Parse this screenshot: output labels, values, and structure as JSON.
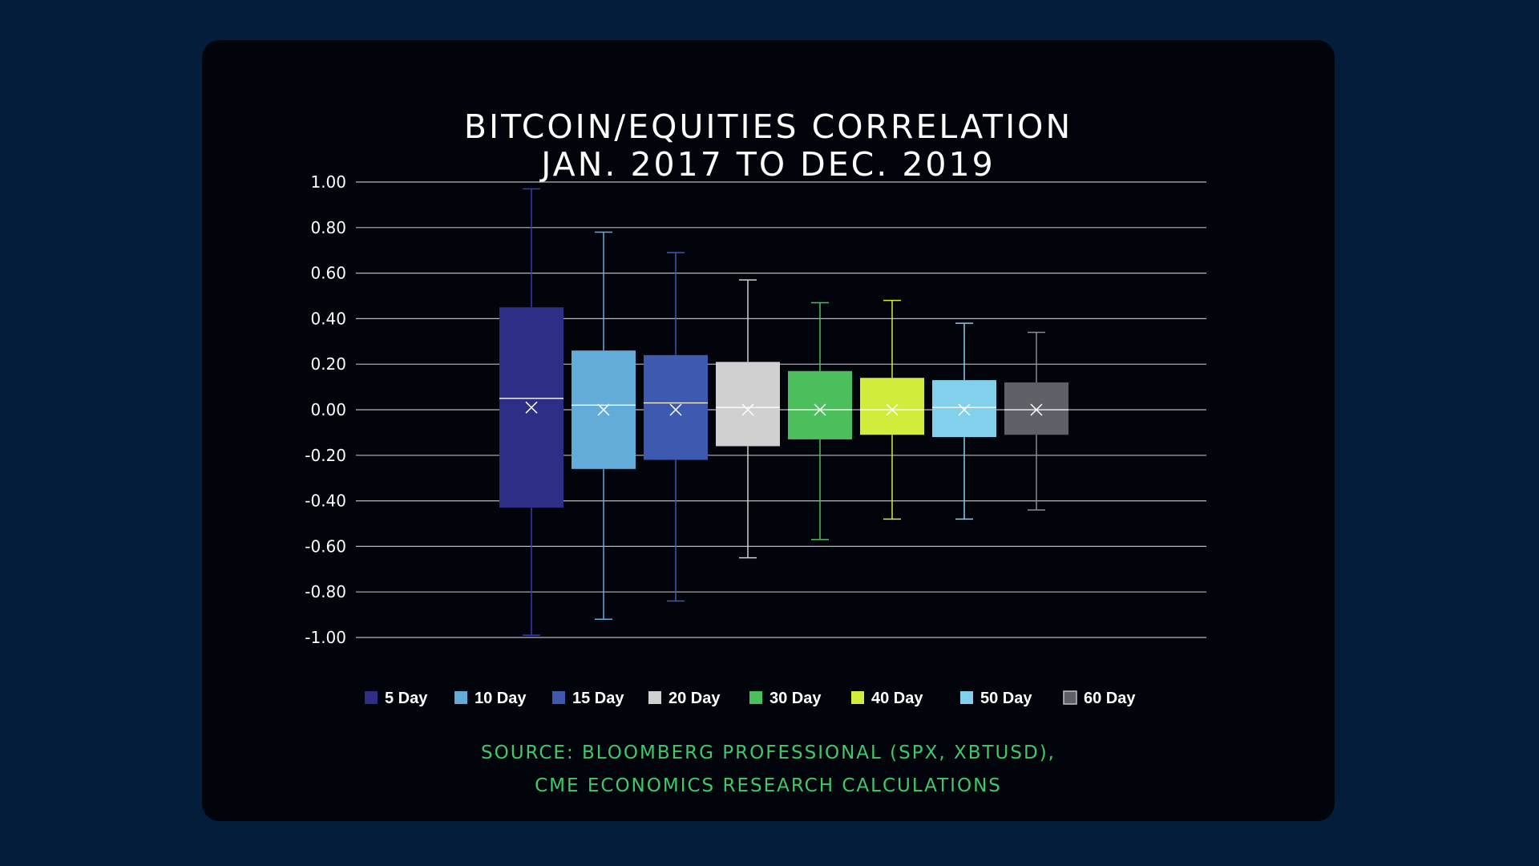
{
  "chart_data": {
    "type": "box",
    "title_lines": [
      "BITCOIN/EQUITIES CORRELATION",
      "JAN. 2017 TO DEC. 2019"
    ],
    "ylim": [
      -1.0,
      1.0
    ],
    "y_ticks": [
      1.0,
      0.8,
      0.6,
      0.4,
      0.2,
      0.0,
      -0.2,
      -0.4,
      -0.6,
      -0.8,
      -1.0
    ],
    "y_tick_labels": [
      "1.00",
      "0.80",
      "0.60",
      "0.40",
      "0.20",
      "0.00",
      "-0.20",
      "-0.40",
      "-0.60",
      "-0.80",
      "-1.00"
    ],
    "grid": true,
    "legend_position": "bottom",
    "series": [
      {
        "name": "5 Day",
        "color": "#2e2e86",
        "whisker_color": "#3a3ab0",
        "min": -0.99,
        "q1": -0.43,
        "median": 0.05,
        "mean": 0.01,
        "q3": 0.45,
        "max": 0.97
      },
      {
        "name": "10 Day",
        "color": "#63acd9",
        "whisker_color": "#63acd9",
        "min": -0.92,
        "q1": -0.26,
        "median": 0.02,
        "mean": 0.0,
        "q3": 0.26,
        "max": 0.78
      },
      {
        "name": "15 Day",
        "color": "#3e5ab0",
        "whisker_color": "#3e5ab0",
        "min": -0.84,
        "q1": -0.22,
        "median": 0.03,
        "mean": 0.0,
        "q3": 0.24,
        "max": 0.69
      },
      {
        "name": "20 Day",
        "color": "#cfd0cf",
        "whisker_color": "#cfd0cf",
        "min": -0.65,
        "q1": -0.16,
        "median": 0.01,
        "mean": 0.0,
        "q3": 0.21,
        "max": 0.57
      },
      {
        "name": "30 Day",
        "color": "#4bbf5c",
        "whisker_color": "#4bbf5c",
        "min": -0.57,
        "q1": -0.13,
        "median": 0.0,
        "mean": 0.0,
        "q3": 0.17,
        "max": 0.47
      },
      {
        "name": "40 Day",
        "color": "#d3ec3c",
        "whisker_color": "#d3ec3c",
        "min": -0.48,
        "q1": -0.11,
        "median": 0.0,
        "mean": 0.0,
        "q3": 0.14,
        "max": 0.48
      },
      {
        "name": "50 Day",
        "color": "#83d0ec",
        "whisker_color": "#83d0ec",
        "min": -0.48,
        "q1": -0.12,
        "median": 0.01,
        "mean": 0.0,
        "q3": 0.13,
        "max": 0.38
      },
      {
        "name": "60 Day",
        "color": "#5f6068",
        "whisker_color": "#8a8b93",
        "min": -0.44,
        "q1": -0.11,
        "median": 0.0,
        "mean": 0.0,
        "q3": 0.12,
        "max": 0.34
      }
    ]
  },
  "source_lines": [
    "SOURCE: BLOOMBERG PROFESSIONAL (SPX, XBTUSD),",
    "CME ECONOMICS RESEARCH CALCULATIONS"
  ],
  "colors": {
    "page_background": "#031d3b",
    "card_background": "#02040b",
    "text": "#ffffff",
    "source_text": "#3ec96a",
    "gridline": "#d8d8d8"
  }
}
